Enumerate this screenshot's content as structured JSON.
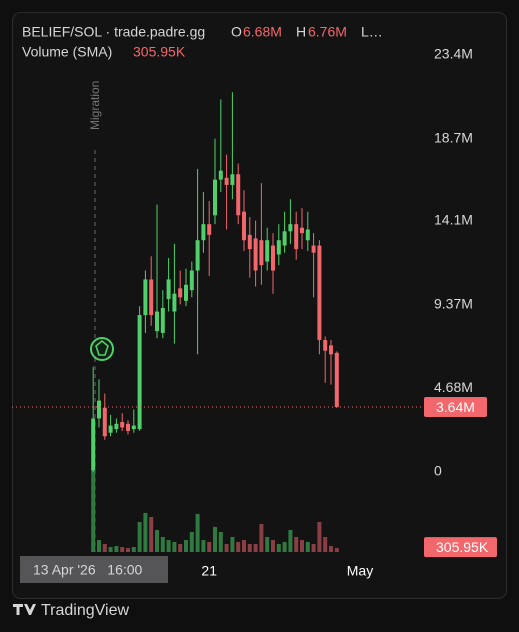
{
  "chart_data": {
    "type": "candlestick",
    "legend": {
      "symbol": "BELIEF/SOL · trade.padre.gg",
      "o_label": "O",
      "o_value": "6.68M",
      "h_label": "H",
      "h_value": "6.76M",
      "l_label": "L…",
      "volume_label": "Volume (SMA)",
      "volume_value": "305.95K"
    },
    "annotation": "Migration",
    "crosshair_label": "13 Apr '26   16:00",
    "last_price_label": "3.64M",
    "last_volume_label": "305.95K",
    "brand": "TradingView",
    "up_color": "#4fd06a",
    "down_color": "#f2676b",
    "volume_up_color": "#2f7a40",
    "volume_down_color": "#8a3f45",
    "open": [
      100000,
      3000000,
      3600000,
      2200000,
      2400000,
      2800000,
      2700000,
      2400000,
      2400000,
      8800000,
      10800000,
      7900000,
      7800000,
      9700000,
      9000000,
      10300000,
      9600000,
      10200000,
      11300000,
      13000000,
      13900000,
      14400000,
      16400000,
      16500000,
      16100000,
      16700000,
      14600000,
      13300000,
      13100000,
      13000000,
      11800000,
      12700000,
      12200000,
      12700000,
      13500000,
      13900000,
      13700000,
      13000000,
      12700000,
      12700000,
      7400000,
      7100000,
      6680000
    ],
    "high": [
      5900000,
      5200000,
      4400000,
      3200000,
      3000000,
      3300000,
      2900000,
      3500000,
      9300000,
      11300000,
      12100000,
      15000000,
      10200000,
      12000000,
      12800000,
      11300000,
      11400000,
      11800000,
      17000000,
      15700000,
      15200000,
      18700000,
      20900000,
      17800000,
      21300000,
      17300000,
      15800000,
      14300000,
      14100000,
      16200000,
      13700000,
      13400000,
      13900000,
      14600000,
      15300000,
      14600000,
      14800000,
      14600000,
      13400000,
      13000000,
      7600000,
      7400000,
      6760000
    ],
    "low": [
      0,
      2500000,
      1800000,
      2000000,
      2200000,
      2300000,
      2100000,
      2200000,
      2300000,
      7800000,
      8200000,
      7500000,
      7500000,
      9000000,
      7200000,
      9400000,
      9300000,
      9800000,
      6600000,
      12300000,
      11000000,
      13900000,
      15700000,
      13600000,
      15300000,
      13900000,
      12400000,
      10900000,
      10400000,
      10500000,
      11300000,
      10000000,
      11600000,
      12300000,
      12800000,
      11900000,
      12500000,
      12400000,
      9800000,
      6600000,
      5000000,
      4900000,
      3600000
    ],
    "close": [
      3000000,
      4000000,
      2000000,
      2600000,
      2700000,
      2500000,
      2300000,
      2600000,
      8800000,
      10800000,
      8800000,
      9000000,
      9200000,
      10800000,
      10000000,
      9800000,
      10500000,
      11300000,
      13000000,
      13900000,
      13300000,
      16400000,
      16900000,
      16100000,
      16700000,
      14400000,
      13000000,
      12500000,
      11300000,
      11600000,
      13000000,
      11300000,
      13000000,
      13500000,
      13900000,
      12500000,
      13400000,
      13600000,
      12300000,
      7400000,
      6800000,
      6600000,
      3640000
    ],
    "volume": [
      6500000,
      940000,
      630000,
      390000,
      470000,
      390000,
      310000,
      390000,
      2360000,
      3070000,
      2750000,
      1730000,
      1180000,
      940000,
      790000,
      630000,
      940000,
      1570000,
      2990000,
      940000,
      790000,
      1970000,
      1570000,
      630000,
      1180000,
      790000,
      940000,
      630000,
      630000,
      2200000,
      1180000,
      940000,
      630000,
      790000,
      1730000,
      1180000,
      940000,
      790000,
      630000,
      2360000,
      1180000,
      470000,
      305950
    ],
    "volume_lim": [
      0,
      11000000
    ],
    "xlim": [
      -14,
      56
    ],
    "xticks": [
      {
        "value": 20,
        "label": "21"
      },
      {
        "value": 46,
        "label": "May"
      }
    ],
    "ylim": [
      -4660000,
      25360000
    ],
    "yticks": [
      0,
      {
        "value": 4680000,
        "label": "4.68M"
      },
      {
        "value": 9370000,
        "label": "9.37M"
      },
      {
        "value": 14100000,
        "label": "14.1M"
      },
      {
        "value": 18700000,
        "label": "18.7M"
      },
      {
        "value": 23400000,
        "label": "23.4M"
      }
    ]
  }
}
